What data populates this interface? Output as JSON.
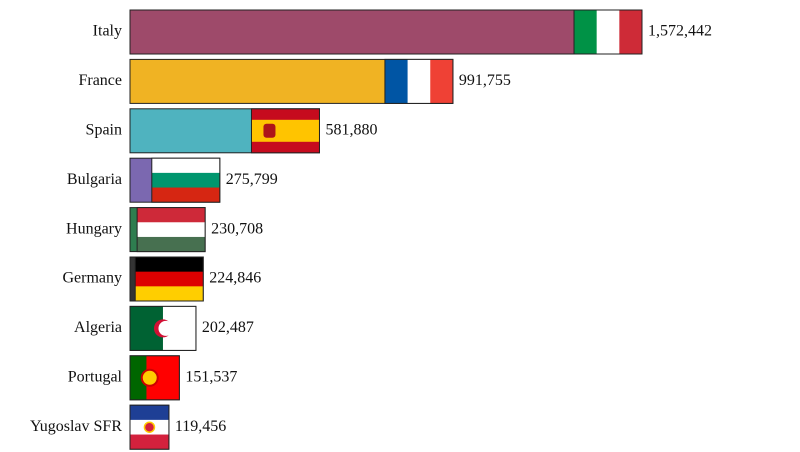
{
  "chart_data": {
    "type": "bar",
    "orientation": "horizontal",
    "categories": [
      "Italy",
      "France",
      "Spain",
      "Bulgaria",
      "Hungary",
      "Germany",
      "Algeria",
      "Portugal",
      "Yugoslav SFR"
    ],
    "values": [
      1572442,
      991755,
      581880,
      275799,
      230708,
      224846,
      202487,
      151537,
      119456
    ],
    "value_labels": [
      "1,572,442",
      "991,755",
      "581,880",
      "275,799",
      "230,708",
      "224,846",
      "202,487",
      "151,537",
      "119,456"
    ],
    "colors": [
      "#9e4a6a",
      "#f0b323",
      "#4fb3bf",
      "#7b68b0",
      "#2e7d4f",
      "#333333",
      "#2e8b57",
      "#c0392b",
      "#2b4ea2"
    ]
  }
}
